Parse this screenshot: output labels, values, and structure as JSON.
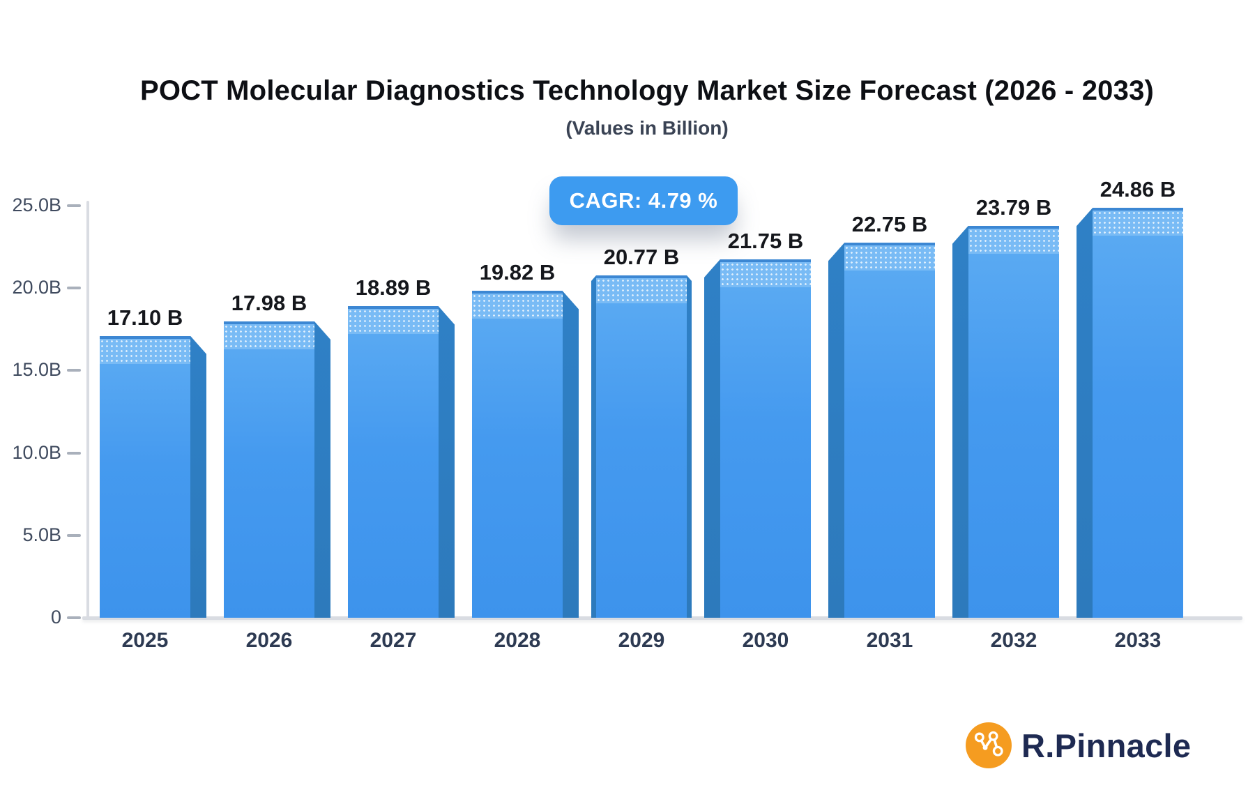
{
  "header": {
    "title": "POCT Molecular Diagnostics Technology Market Size Forecast (2026 - 2033)",
    "subtitle": "(Values in Billion)"
  },
  "badge": {
    "label": "CAGR: 4.79 %"
  },
  "chart_data": {
    "type": "bar",
    "title": "POCT Molecular Diagnostics Technology Market Size Forecast (2026 - 2033)",
    "subtitle": "(Values in Billion)",
    "categories": [
      "2025",
      "2026",
      "2027",
      "2028",
      "2029",
      "2030",
      "2031",
      "2032",
      "2033"
    ],
    "values": [
      17.1,
      17.98,
      18.89,
      19.82,
      20.77,
      21.75,
      22.75,
      23.79,
      24.86
    ],
    "bar_labels": [
      "17.10 B",
      "17.98 B",
      "18.89 B",
      "19.82 B",
      "20.77 B",
      "21.75 B",
      "22.75 B",
      "23.79 B",
      "24.86 B"
    ],
    "xlabel": "",
    "ylabel": "",
    "ylim": [
      0,
      25
    ],
    "yticks": [
      {
        "value": 0,
        "label": "0"
      },
      {
        "value": 5,
        "label": "5.0B"
      },
      {
        "value": 10,
        "label": "10.0B"
      },
      {
        "value": 15,
        "label": "15.0B"
      },
      {
        "value": 20,
        "label": "20.0B"
      },
      {
        "value": 25,
        "label": "25.0B"
      }
    ],
    "grid": false,
    "legend": false,
    "annotation": "CAGR: 4.79 %"
  },
  "colors": {
    "bar_front_top": "#5dacf3",
    "bar_front_bottom": "#3d93ec",
    "bar_cap": "#79bbf5",
    "bar_side": "#2e7dc1",
    "badge_blue": "#3D9BF0",
    "axis_gray": "#d9dce2",
    "brand_orange": "#F59C20",
    "brand_navy": "#1e2a52"
  },
  "brand": {
    "name": "R.Pinnacle"
  }
}
